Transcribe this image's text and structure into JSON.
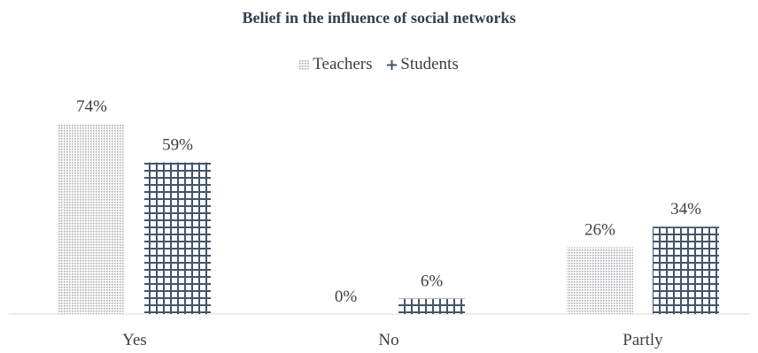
{
  "chart_data": {
    "type": "bar",
    "title": "Belief in the influence of social networks",
    "categories": [
      "Yes",
      "No",
      "Partly"
    ],
    "series": [
      {
        "name": "Teachers",
        "values": [
          74,
          0,
          26
        ],
        "labels": [
          "74%",
          "0%",
          "26%"
        ],
        "color": "#a6a9ae",
        "pattern": "dots"
      },
      {
        "name": "Students",
        "values": [
          59,
          6,
          34
        ],
        "labels": [
          "59%",
          "6%",
          "34%"
        ],
        "color": "#44546a",
        "pattern": "grid"
      }
    ],
    "value_unit": "%",
    "ylim": [
      0,
      74
    ],
    "grid": false,
    "legend_position": "top"
  }
}
